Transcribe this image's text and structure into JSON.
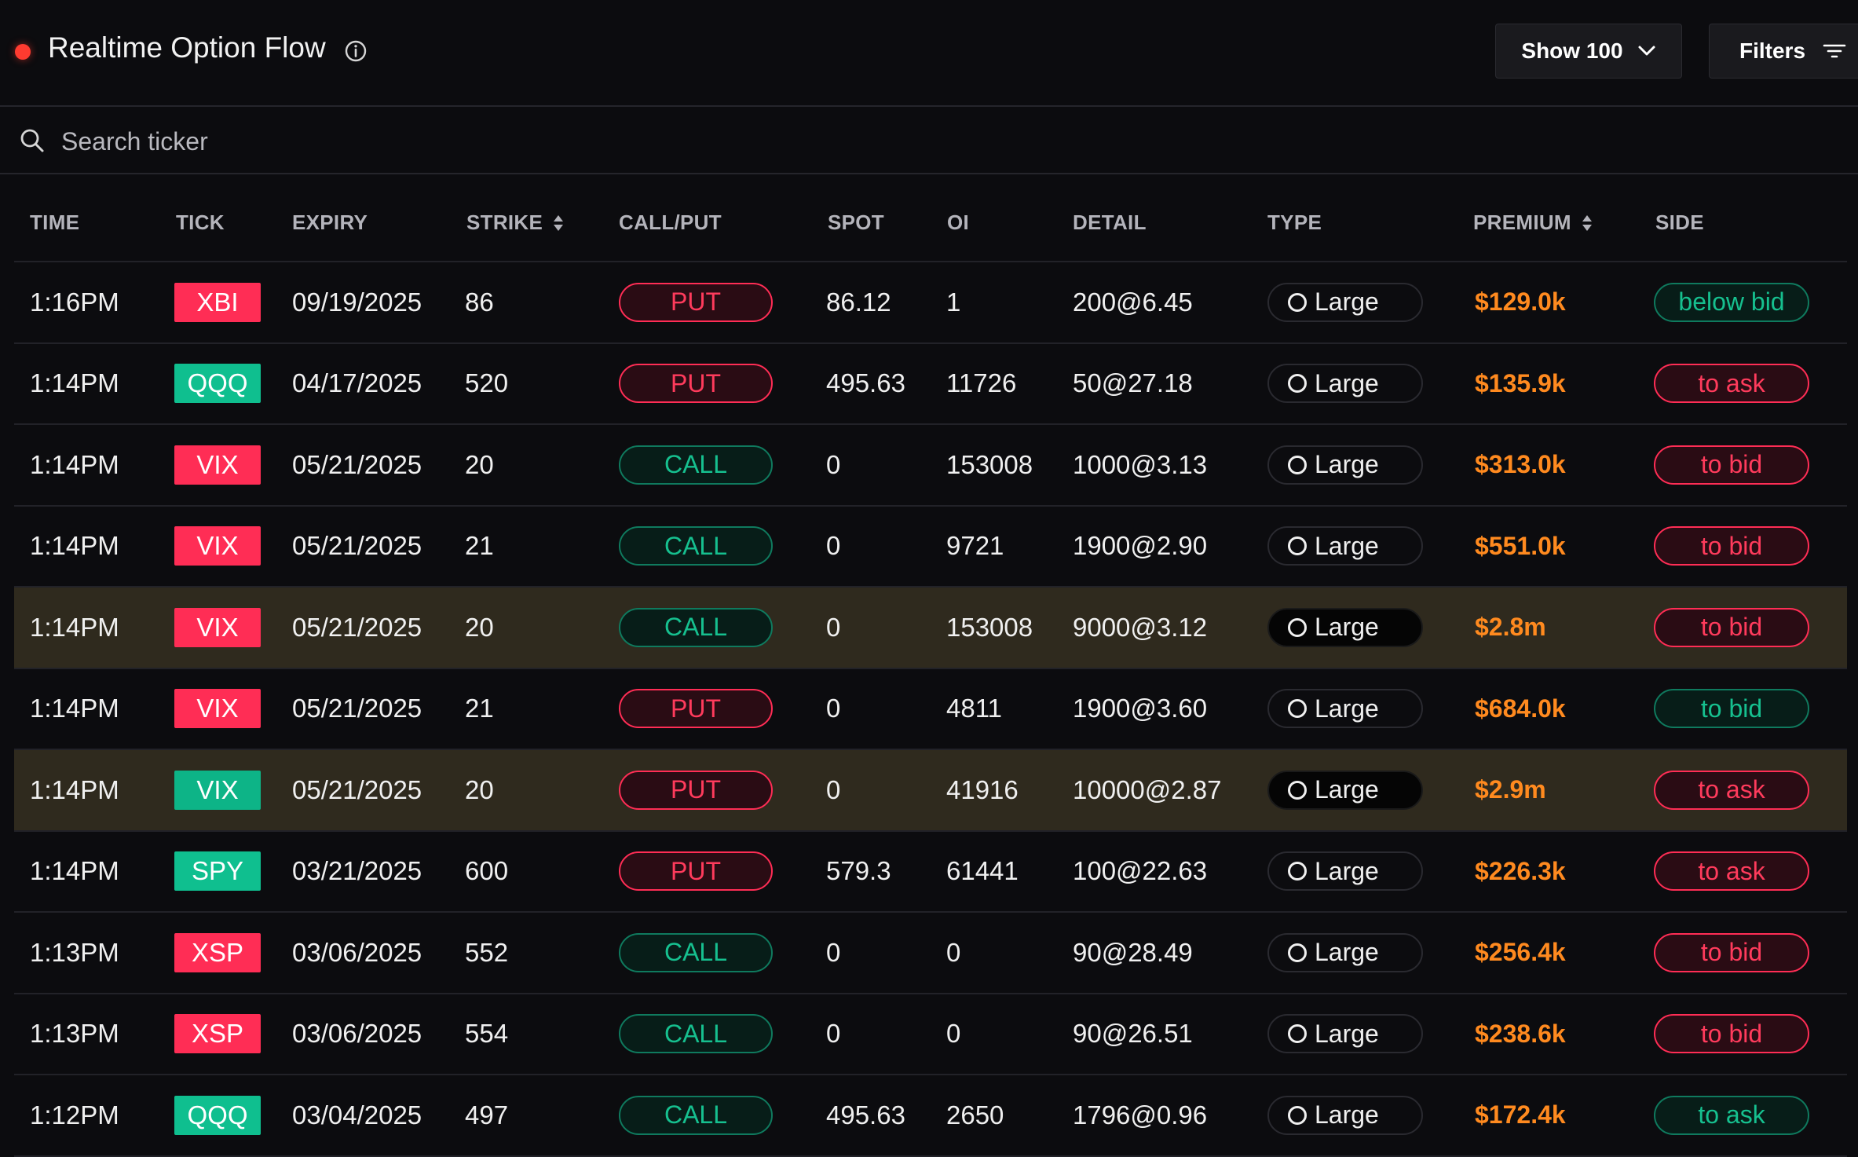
{
  "header": {
    "title": "Realtime Option Flow",
    "show_label": "Show 100",
    "filters_label": "Filters"
  },
  "search": {
    "placeholder": "Search ticker"
  },
  "colors": {
    "bearish": "#ff2d55",
    "bullish": "#0fbf8f",
    "premium": "#ff8a1f",
    "highlight_row": "#2f2a1e",
    "live_dot": "#ff3b30"
  },
  "icons": {
    "live": "live-indicator-dot",
    "info": "info-icon",
    "show_dropdown": "chevron-down-icon",
    "filters": "filter-icon",
    "search": "search-icon",
    "sort": "sort-icon",
    "type": "circle-icon"
  },
  "columns": [
    {
      "label": "TIME",
      "sortable": false
    },
    {
      "label": "TICK",
      "sortable": false
    },
    {
      "label": "EXPIRY",
      "sortable": false
    },
    {
      "label": "STRIKE",
      "sortable": true
    },
    {
      "label": "CALL/PUT",
      "sortable": false
    },
    {
      "label": "SPOT",
      "sortable": false
    },
    {
      "label": "OI",
      "sortable": false
    },
    {
      "label": "DETAIL",
      "sortable": false
    },
    {
      "label": "TYPE",
      "sortable": false
    },
    {
      "label": "PREMIUM",
      "sortable": true
    },
    {
      "label": "SIDE",
      "sortable": false
    }
  ],
  "rows": [
    {
      "time": "1:16PM",
      "tick": "XBI",
      "tick_color": "red",
      "expiry": "09/19/2025",
      "strike": "86",
      "call_put": "PUT",
      "spot": "86.12",
      "oi": "1",
      "detail": "200@6.45",
      "type": "Large",
      "premium": "$129.0k",
      "side": "below bid",
      "side_color": "green",
      "highlight": false
    },
    {
      "time": "1:14PM",
      "tick": "QQQ",
      "tick_color": "green",
      "expiry": "04/17/2025",
      "strike": "520",
      "call_put": "PUT",
      "spot": "495.63",
      "oi": "11726",
      "detail": "50@27.18",
      "type": "Large",
      "premium": "$135.9k",
      "side": "to ask",
      "side_color": "red",
      "highlight": false
    },
    {
      "time": "1:14PM",
      "tick": "VIX",
      "tick_color": "red",
      "expiry": "05/21/2025",
      "strike": "20",
      "call_put": "CALL",
      "spot": "0",
      "oi": "153008",
      "detail": "1000@3.13",
      "type": "Large",
      "premium": "$313.0k",
      "side": "to bid",
      "side_color": "red",
      "highlight": false
    },
    {
      "time": "1:14PM",
      "tick": "VIX",
      "tick_color": "red",
      "expiry": "05/21/2025",
      "strike": "21",
      "call_put": "CALL",
      "spot": "0",
      "oi": "9721",
      "detail": "1900@2.90",
      "type": "Large",
      "premium": "$551.0k",
      "side": "to bid",
      "side_color": "red",
      "highlight": false
    },
    {
      "time": "1:14PM",
      "tick": "VIX",
      "tick_color": "red",
      "expiry": "05/21/2025",
      "strike": "20",
      "call_put": "CALL",
      "spot": "0",
      "oi": "153008",
      "detail": "9000@3.12",
      "type": "Large",
      "premium": "$2.8m",
      "side": "to bid",
      "side_color": "red",
      "highlight": true
    },
    {
      "time": "1:14PM",
      "tick": "VIX",
      "tick_color": "red",
      "expiry": "05/21/2025",
      "strike": "21",
      "call_put": "PUT",
      "spot": "0",
      "oi": "4811",
      "detail": "1900@3.60",
      "type": "Large",
      "premium": "$684.0k",
      "side": "to bid",
      "side_color": "green",
      "highlight": false
    },
    {
      "time": "1:14PM",
      "tick": "VIX",
      "tick_color": "green",
      "expiry": "05/21/2025",
      "strike": "20",
      "call_put": "PUT",
      "spot": "0",
      "oi": "41916",
      "detail": "10000@2.87",
      "type": "Large",
      "premium": "$2.9m",
      "side": "to ask",
      "side_color": "red",
      "highlight": true
    },
    {
      "time": "1:14PM",
      "tick": "SPY",
      "tick_color": "green",
      "expiry": "03/21/2025",
      "strike": "600",
      "call_put": "PUT",
      "spot": "579.3",
      "oi": "61441",
      "detail": "100@22.63",
      "type": "Large",
      "premium": "$226.3k",
      "side": "to ask",
      "side_color": "red",
      "highlight": false
    },
    {
      "time": "1:13PM",
      "tick": "XSP",
      "tick_color": "red",
      "expiry": "03/06/2025",
      "strike": "552",
      "call_put": "CALL",
      "spot": "0",
      "oi": "0",
      "detail": "90@28.49",
      "type": "Large",
      "premium": "$256.4k",
      "side": "to bid",
      "side_color": "red",
      "highlight": false
    },
    {
      "time": "1:13PM",
      "tick": "XSP",
      "tick_color": "red",
      "expiry": "03/06/2025",
      "strike": "554",
      "call_put": "CALL",
      "spot": "0",
      "oi": "0",
      "detail": "90@26.51",
      "type": "Large",
      "premium": "$238.6k",
      "side": "to bid",
      "side_color": "red",
      "highlight": false
    },
    {
      "time": "1:12PM",
      "tick": "QQQ",
      "tick_color": "green",
      "expiry": "03/04/2025",
      "strike": "497",
      "call_put": "CALL",
      "spot": "495.63",
      "oi": "2650",
      "detail": "1796@0.96",
      "type": "Large",
      "premium": "$172.4k",
      "side": "to ask",
      "side_color": "green",
      "highlight": false
    }
  ]
}
